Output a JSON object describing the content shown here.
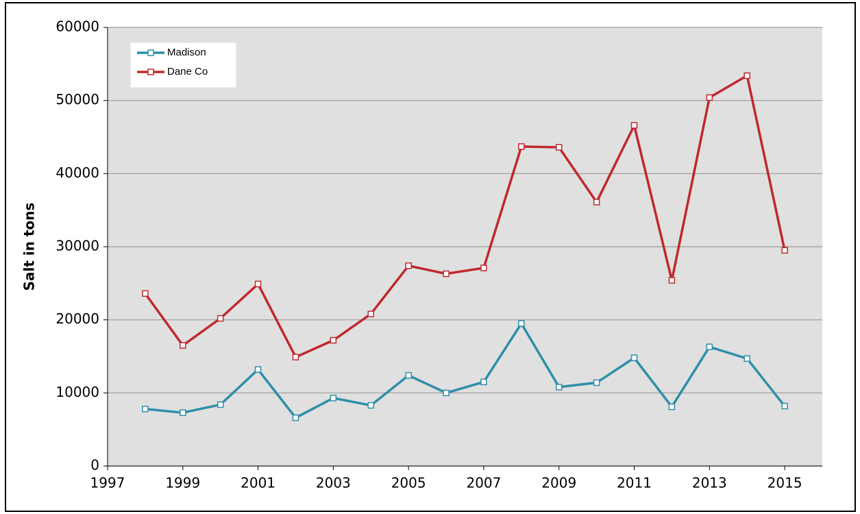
{
  "chart_data": {
    "type": "line",
    "y_label": "Salt in tons",
    "x": [
      1998,
      1999,
      2000,
      2001,
      2002,
      2003,
      2004,
      2005,
      2006,
      2007,
      2008,
      2009,
      2010,
      2011,
      2012,
      2013,
      2014,
      2015
    ],
    "series": [
      {
        "name": "Madison",
        "color": "#2e8fa8",
        "values": [
          7800,
          7300,
          8400,
          13200,
          6600,
          9300,
          8300,
          12400,
          10000,
          11500,
          19500,
          10800,
          11400,
          14800,
          8100,
          16300,
          14700,
          8200
        ]
      },
      {
        "name": "Dane Co",
        "color": "#c0282d",
        "values": [
          23600,
          16500,
          20200,
          24900,
          14900,
          17200,
          20800,
          27400,
          26300,
          27100,
          43700,
          43600,
          36100,
          46600,
          25400,
          50400,
          53400,
          29500
        ]
      }
    ],
    "xlim": [
      1997,
      2016
    ],
    "xticks": [
      1997,
      1999,
      2001,
      2003,
      2005,
      2007,
      2009,
      2011,
      2013,
      2015
    ],
    "ylim": [
      0,
      60000
    ],
    "yticks": [
      0,
      10000,
      20000,
      30000,
      40000,
      50000,
      60000
    ],
    "grid": true,
    "legend": "upper left"
  }
}
